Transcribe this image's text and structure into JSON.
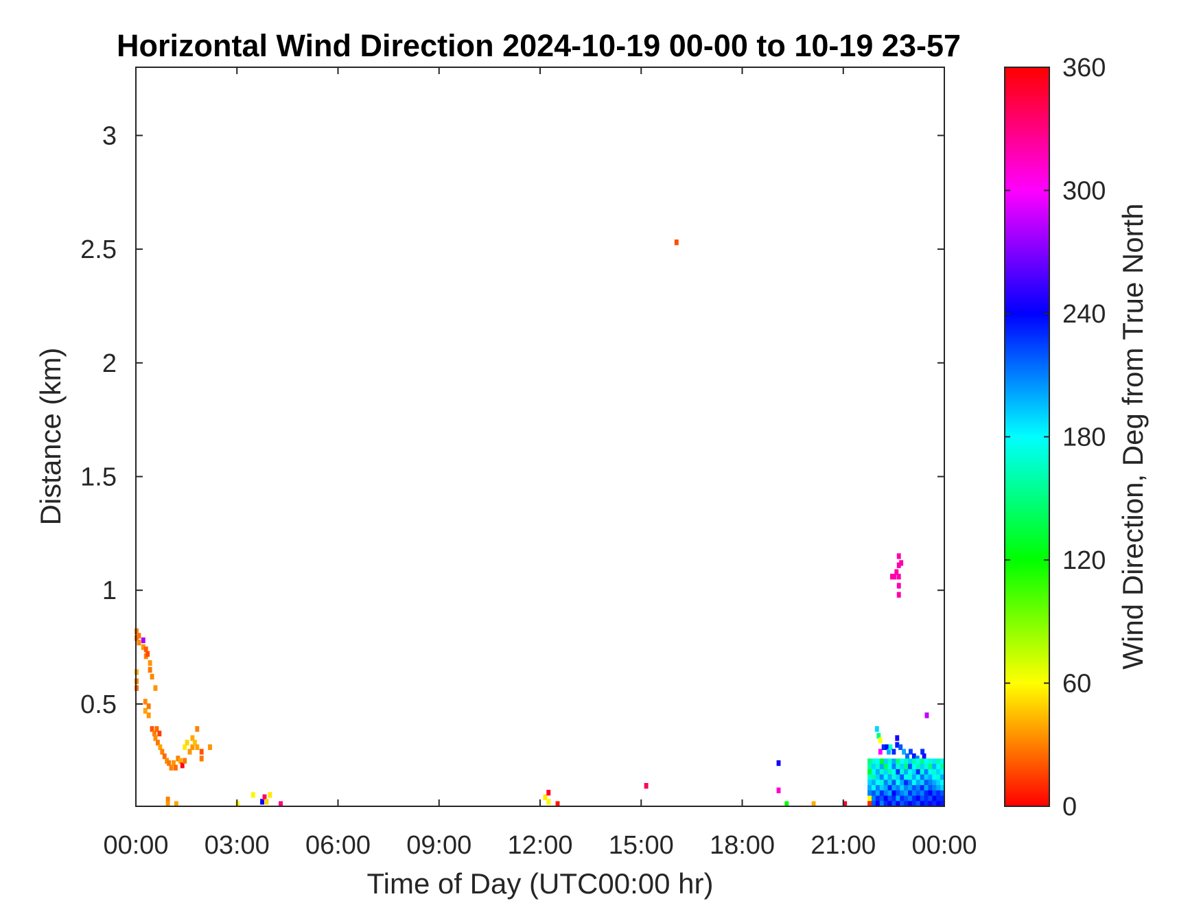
{
  "chart_data": {
    "type": "heatmap",
    "title": "Horizontal Wind Direction 2024-10-19 00-00 to 10-19 23-57",
    "xlabel": "Time of Day (UTC00:00 hr)",
    "ylabel": "Distance (km)",
    "xlim_hours": [
      0,
      24
    ],
    "ylim_km": [
      0.05,
      3.3
    ],
    "x_ticks": [
      {
        "hours": 0,
        "label": "00:00"
      },
      {
        "hours": 3,
        "label": "03:00"
      },
      {
        "hours": 6,
        "label": "06:00"
      },
      {
        "hours": 9,
        "label": "09:00"
      },
      {
        "hours": 12,
        "label": "12:00"
      },
      {
        "hours": 15,
        "label": "15:00"
      },
      {
        "hours": 18,
        "label": "18:00"
      },
      {
        "hours": 21,
        "label": "21:00"
      },
      {
        "hours": 24,
        "label": "00:00"
      }
    ],
    "y_ticks": [
      {
        "km": 0.5,
        "label": "0.5"
      },
      {
        "km": 1,
        "label": "1"
      },
      {
        "km": 1.5,
        "label": "1.5"
      },
      {
        "km": 2,
        "label": "2"
      },
      {
        "km": 2.5,
        "label": "2.5"
      },
      {
        "km": 3,
        "label": "3"
      }
    ],
    "colorbar": {
      "label": "Wind Direction, Deg from True North",
      "range": [
        0,
        360
      ],
      "ticks": [
        {
          "value": 0,
          "label": "0"
        },
        {
          "value": 60,
          "label": "60"
        },
        {
          "value": 120,
          "label": "120"
        },
        {
          "value": 180,
          "label": "180"
        },
        {
          "value": 240,
          "label": "240"
        },
        {
          "value": 300,
          "label": "300"
        },
        {
          "value": 360,
          "label": "360"
        }
      ],
      "colormap": "hsv"
    },
    "cell_size": {
      "hours": 0.12,
      "km": 0.025
    },
    "points": [
      [
        0.02,
        0.82,
        30
      ],
      [
        0.02,
        0.79,
        25
      ],
      [
        0.09,
        0.8,
        28
      ],
      [
        0.09,
        0.77,
        32
      ],
      [
        0.22,
        0.78,
        280
      ],
      [
        0.22,
        0.75,
        35
      ],
      [
        0.3,
        0.74,
        22
      ],
      [
        0.3,
        0.71,
        30
      ],
      [
        0.35,
        0.72,
        18
      ],
      [
        0.42,
        0.68,
        35
      ],
      [
        0.42,
        0.65,
        28
      ],
      [
        0.48,
        0.62,
        32
      ],
      [
        0.02,
        0.64,
        40
      ],
      [
        0.02,
        0.6,
        30
      ],
      [
        0.02,
        0.57,
        25
      ],
      [
        0.58,
        0.57,
        35
      ],
      [
        0.28,
        0.51,
        32
      ],
      [
        0.28,
        0.47,
        38
      ],
      [
        0.38,
        0.49,
        28
      ],
      [
        0.38,
        0.45,
        35
      ],
      [
        0.48,
        0.39,
        20
      ],
      [
        0.55,
        0.37,
        30
      ],
      [
        0.62,
        0.39,
        25
      ],
      [
        0.7,
        0.37,
        15
      ],
      [
        0.58,
        0.35,
        33
      ],
      [
        0.65,
        0.33,
        28
      ],
      [
        0.72,
        0.31,
        38
      ],
      [
        0.78,
        0.29,
        30
      ],
      [
        0.85,
        0.27,
        25
      ],
      [
        0.92,
        0.25,
        32
      ],
      [
        0.98,
        0.24,
        28
      ],
      [
        1.05,
        0.22,
        30
      ],
      [
        1.12,
        0.24,
        35
      ],
      [
        1.18,
        0.22,
        25
      ],
      [
        1.25,
        0.26,
        30
      ],
      [
        1.32,
        0.25,
        40
      ],
      [
        1.38,
        0.23,
        355
      ],
      [
        1.45,
        0.25,
        28
      ],
      [
        1.45,
        0.31,
        55
      ],
      [
        1.52,
        0.33,
        50
      ],
      [
        1.6,
        0.29,
        35
      ],
      [
        1.68,
        0.35,
        40
      ],
      [
        1.68,
        0.31,
        35
      ],
      [
        1.75,
        0.33,
        45
      ],
      [
        1.82,
        0.39,
        30
      ],
      [
        1.82,
        0.31,
        38
      ],
      [
        2.2,
        0.31,
        35
      ],
      [
        1.95,
        0.29,
        20
      ],
      [
        1.95,
        0.26,
        28
      ],
      [
        0.95,
        0.08,
        30
      ],
      [
        0.95,
        0.06,
        35
      ],
      [
        1.2,
        0.06,
        38
      ],
      [
        3.02,
        0.06,
        60
      ],
      [
        3.48,
        0.1,
        58
      ],
      [
        3.75,
        0.07,
        240
      ],
      [
        3.82,
        0.09,
        335
      ],
      [
        3.88,
        0.07,
        50
      ],
      [
        3.98,
        0.1,
        55
      ],
      [
        4.3,
        0.06,
        330
      ],
      [
        12.15,
        0.09,
        55
      ],
      [
        12.25,
        0.07,
        58
      ],
      [
        12.25,
        0.11,
        350
      ],
      [
        12.52,
        0.06,
        5
      ],
      [
        15.15,
        0.14,
        340
      ],
      [
        16.05,
        2.53,
        18
      ],
      [
        19.08,
        0.24,
        245
      ],
      [
        19.08,
        0.12,
        310
      ],
      [
        19.32,
        0.06,
        120
      ],
      [
        20.12,
        0.06,
        40
      ],
      [
        21.05,
        0.06,
        350
      ],
      [
        23.48,
        0.45,
        285
      ],
      [
        22.65,
        1.15,
        320
      ],
      [
        22.65,
        1.11,
        320
      ],
      [
        22.72,
        1.12,
        320
      ],
      [
        22.45,
        1.06,
        320
      ],
      [
        22.52,
        1.06,
        320
      ],
      [
        22.58,
        1.08,
        320
      ],
      [
        22.65,
        1.06,
        320
      ],
      [
        22.65,
        1.02,
        320
      ],
      [
        22.65,
        0.98,
        320
      ],
      [
        22.0,
        0.39,
        190
      ],
      [
        22.05,
        0.36,
        150
      ],
      [
        22.1,
        0.34,
        60
      ],
      [
        22.1,
        0.29,
        300
      ],
      [
        22.2,
        0.31,
        230
      ],
      [
        22.3,
        0.31,
        240
      ],
      [
        22.35,
        0.29,
        200
      ],
      [
        22.4,
        0.31,
        170
      ],
      [
        22.5,
        0.29,
        230
      ],
      [
        22.6,
        0.35,
        245
      ],
      [
        22.6,
        0.32,
        235
      ],
      [
        22.7,
        0.31,
        220
      ],
      [
        22.8,
        0.29,
        200
      ],
      [
        22.9,
        0.27,
        215
      ],
      [
        23.0,
        0.29,
        225
      ],
      [
        23.1,
        0.27,
        235
      ],
      [
        23.2,
        0.26,
        210
      ],
      [
        23.35,
        0.29,
        230
      ],
      [
        23.4,
        0.27,
        245
      ],
      [
        21.8,
        0.24,
        20
      ],
      [
        21.8,
        0.21,
        340
      ],
      [
        21.85,
        0.18,
        120
      ],
      [
        21.9,
        0.15,
        40
      ],
      [
        21.85,
        0.12,
        100
      ],
      [
        21.9,
        0.09,
        190
      ],
      [
        21.85,
        0.06,
        110
      ]
    ],
    "block": {
      "x_start_hours": 21.72,
      "x_end_hours": 24.0,
      "y_bottom_km": 0.05,
      "y_top_km": 0.26,
      "nx": 19,
      "ny": 9,
      "values": [
        [
          150,
          170,
          180,
          130,
          190,
          170,
          200,
          150,
          180,
          165,
          190,
          160,
          175,
          150,
          180,
          170,
          185,
          160,
          175
        ],
        [
          160,
          190,
          170,
          200,
          140,
          180,
          210,
          170,
          190,
          150,
          220,
          180,
          160,
          190,
          170,
          150,
          200,
          180,
          160
        ],
        [
          130,
          180,
          200,
          170,
          190,
          160,
          180,
          230,
          170,
          200,
          180,
          190,
          230,
          170,
          210,
          180,
          170,
          190,
          180
        ],
        [
          170,
          160,
          190,
          210,
          180,
          200,
          170,
          190,
          220,
          180,
          170,
          200,
          180,
          215,
          190,
          200,
          180,
          170,
          200
        ],
        [
          190,
          200,
          180,
          170,
          210,
          190,
          220,
          180,
          200,
          230,
          210,
          180,
          200,
          190,
          220,
          210,
          200,
          190,
          180
        ],
        [
          200,
          180,
          210,
          190,
          200,
          230,
          200,
          210,
          190,
          210,
          200,
          220,
          210,
          230,
          200,
          220,
          210,
          200,
          190
        ],
        [
          210,
          220,
          200,
          230,
          210,
          200,
          240,
          220,
          210,
          200,
          230,
          210,
          220,
          210,
          230,
          240,
          220,
          230,
          220
        ],
        [
          60,
          210,
          230,
          220,
          240,
          220,
          230,
          200,
          230,
          220,
          210,
          230,
          240,
          220,
          230,
          220,
          240,
          230,
          230
        ],
        [
          10,
          220,
          240,
          210,
          230,
          240,
          220,
          240,
          220,
          230,
          240,
          230,
          220,
          240,
          230,
          245,
          230,
          240,
          235
        ]
      ]
    }
  }
}
